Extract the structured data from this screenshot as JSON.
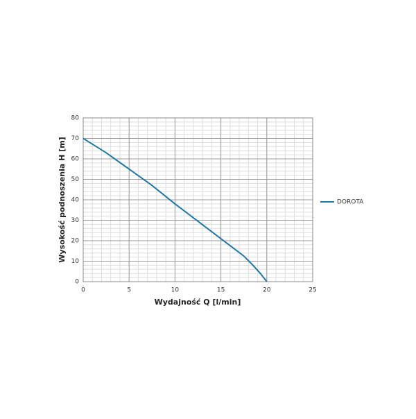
{
  "chart_data": {
    "type": "line",
    "x_label": "Wydajność Q [l/min]",
    "y_label": "Wysokość podnoszenia H [m]",
    "x": [
      0,
      2.5,
      5,
      7.5,
      10,
      12.5,
      15,
      17.5,
      18.5,
      19.3,
      20
    ],
    "series": [
      {
        "name": "DOROTA",
        "color": "#1f77a8",
        "values": [
          70,
          63,
          55,
          47,
          38,
          29.5,
          21,
          12.5,
          8,
          4,
          0
        ]
      }
    ],
    "xlim": [
      0,
      25
    ],
    "xticks": [
      0,
      5,
      10,
      15,
      20,
      25
    ],
    "ylim": [
      0,
      80
    ],
    "yticks": [
      0,
      10,
      20,
      30,
      40,
      50,
      60,
      70,
      80
    ],
    "grid": true,
    "minor_grid": {
      "x": 1,
      "y": 2
    },
    "legend": "right"
  }
}
